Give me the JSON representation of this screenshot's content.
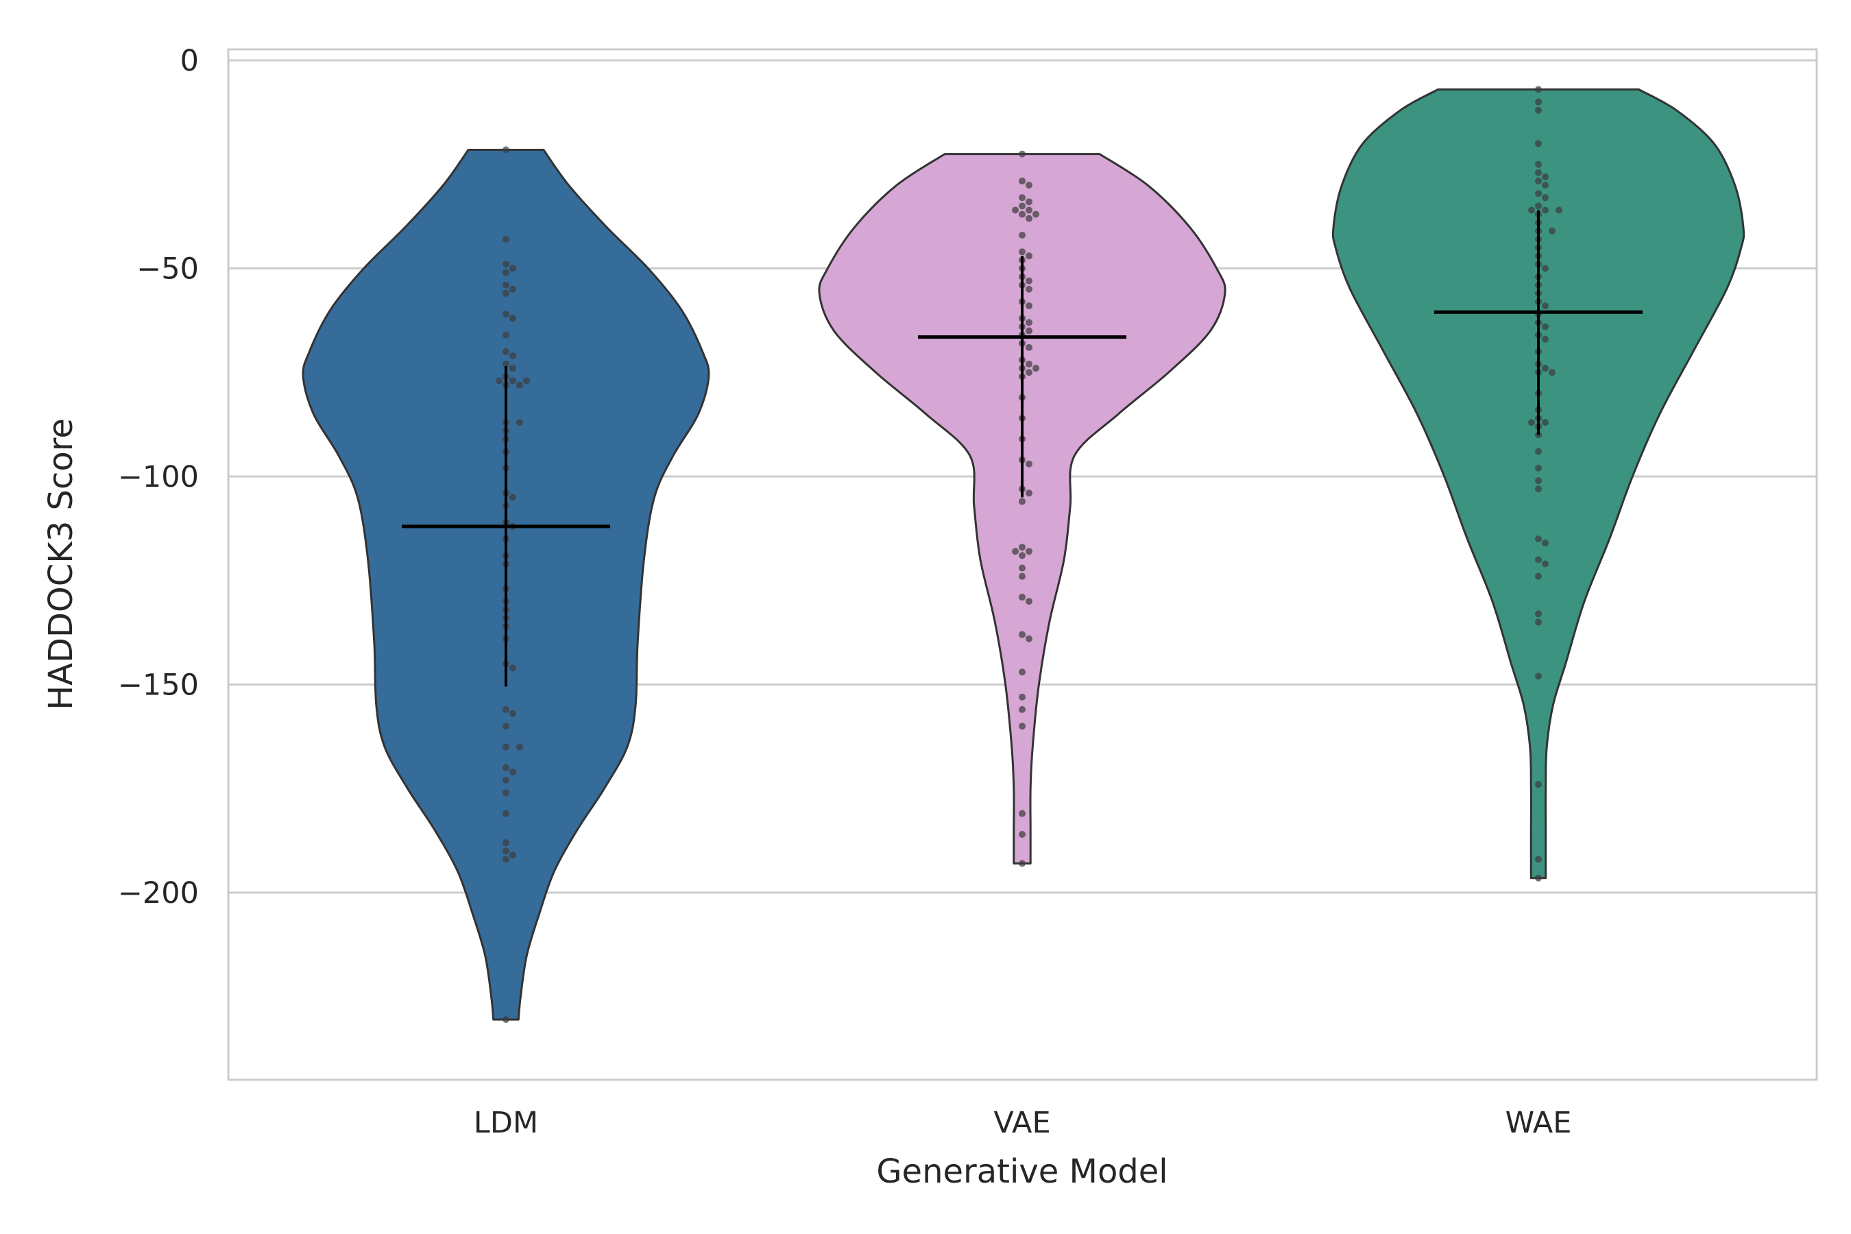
{
  "chart_data": {
    "type": "violin",
    "title": "",
    "xlabel": "Generative Model",
    "ylabel": "HADDOCK3 Score",
    "ylim": [
      -245,
      2
    ],
    "yticks": [
      0,
      -50,
      -100,
      -150,
      -200
    ],
    "ytick_labels": [
      "0",
      "−50",
      "−100",
      "−150",
      "−200"
    ],
    "grid": true,
    "categories": [
      "LDM",
      "VAE",
      "WAE"
    ],
    "colors": [
      "#366c9a",
      "#d6a6d5",
      "#3b9380"
    ],
    "series": [
      {
        "category": "LDM",
        "color": "#366c9a",
        "mean": -112,
        "std_range": [
          -73.5,
          -150.5
        ],
        "min": -230.5,
        "max": -21.5,
        "density_profile": [
          [
            -21.5,
            0.18
          ],
          [
            -30,
            0.3
          ],
          [
            -40,
            0.48
          ],
          [
            -50,
            0.68
          ],
          [
            -60,
            0.84
          ],
          [
            -70,
            0.94
          ],
          [
            -76,
            0.97
          ],
          [
            -85,
            0.92
          ],
          [
            -95,
            0.8
          ],
          [
            -105,
            0.71
          ],
          [
            -120,
            0.66
          ],
          [
            -140,
            0.63
          ],
          [
            -155,
            0.62
          ],
          [
            -165,
            0.58
          ],
          [
            -175,
            0.47
          ],
          [
            -185,
            0.34
          ],
          [
            -195,
            0.23
          ],
          [
            -205,
            0.16
          ],
          [
            -215,
            0.1
          ],
          [
            -225,
            0.07
          ],
          [
            -230.5,
            0.06
          ]
        ],
        "points": [
          -21.5,
          -43,
          -49,
          -50,
          -51,
          -54,
          -55,
          -56,
          -61,
          -62,
          -66,
          -70,
          -71,
          -73,
          -74,
          -76,
          -77,
          -77,
          -77,
          -78,
          -78,
          -87,
          -87,
          -89,
          -91,
          -94,
          -98,
          -104,
          -105,
          -107,
          -111,
          -112,
          -115,
          -119,
          -121,
          -127,
          -130,
          -132,
          -134,
          -136,
          -139,
          -145,
          -146,
          -156,
          -157,
          -160,
          -165,
          -165,
          -170,
          -171,
          -173,
          -176,
          -181,
          -188,
          -190,
          -191,
          -192,
          -230.5
        ]
      },
      {
        "category": "VAE",
        "color": "#d6a6d5",
        "mean": -66.5,
        "std_range": [
          -47,
          -105
        ],
        "min": -193,
        "max": -22.5,
        "density_profile": [
          [
            -22.5,
            0.37
          ],
          [
            -30,
            0.6
          ],
          [
            -40,
            0.8
          ],
          [
            -50,
            0.93
          ],
          [
            -56,
            0.97
          ],
          [
            -65,
            0.9
          ],
          [
            -75,
            0.7
          ],
          [
            -85,
            0.46
          ],
          [
            -95,
            0.25
          ],
          [
            -107,
            0.23
          ],
          [
            -120,
            0.2
          ],
          [
            -135,
            0.13
          ],
          [
            -150,
            0.08
          ],
          [
            -165,
            0.05
          ],
          [
            -175,
            0.04
          ],
          [
            -185,
            0.04
          ],
          [
            -193,
            0.04
          ]
        ],
        "points": [
          -22.5,
          -29,
          -30,
          -33,
          -34,
          -35,
          -36,
          -36,
          -37,
          -37,
          -38,
          -42,
          -46,
          -47,
          -48,
          -50,
          -52,
          -53,
          -54,
          -55,
          -58,
          -59,
          -62,
          -63,
          -64,
          -65,
          -66,
          -68,
          -69,
          -72,
          -73,
          -74,
          -74,
          -75,
          -76,
          -81,
          -86,
          -91,
          -96,
          -97,
          -103,
          -104,
          -106,
          -117,
          -118,
          -118,
          -119,
          -122,
          -124,
          -129,
          -130,
          -138,
          -139,
          -147,
          -153,
          -156,
          -160,
          -181,
          -186,
          -193
        ]
      },
      {
        "category": "WAE",
        "color": "#3b9380",
        "mean": -60.5,
        "std_range": [
          -36,
          -90
        ],
        "min": -196.5,
        "max": -7,
        "density_profile": [
          [
            -7,
            0.48
          ],
          [
            -12,
            0.66
          ],
          [
            -20,
            0.84
          ],
          [
            -30,
            0.94
          ],
          [
            -40,
            0.98
          ],
          [
            -45,
            0.97
          ],
          [
            -55,
            0.9
          ],
          [
            -70,
            0.74
          ],
          [
            -85,
            0.58
          ],
          [
            -100,
            0.45
          ],
          [
            -115,
            0.34
          ],
          [
            -130,
            0.22
          ],
          [
            -145,
            0.13
          ],
          [
            -155,
            0.07
          ],
          [
            -165,
            0.04
          ],
          [
            -175,
            0.035
          ],
          [
            -185,
            0.035
          ],
          [
            -196.5,
            0.035
          ]
        ],
        "points": [
          -7,
          -10,
          -12,
          -20,
          -25,
          -27,
          -28,
          -29,
          -30,
          -32,
          -33,
          -35,
          -36,
          -36,
          -36,
          -37,
          -39,
          -41,
          -41,
          -43,
          -45,
          -47,
          -49,
          -50,
          -52,
          -54,
          -56,
          -58,
          -59,
          -61,
          -63,
          -64,
          -66,
          -67,
          -70,
          -73,
          -74,
          -75,
          -75,
          -80,
          -84,
          -86,
          -87,
          -87,
          -88,
          -90,
          -94,
          -98,
          -101,
          -103,
          -115,
          -116,
          -120,
          -121,
          -124,
          -133,
          -135,
          -148,
          -174,
          -192,
          -196.5
        ]
      }
    ]
  }
}
